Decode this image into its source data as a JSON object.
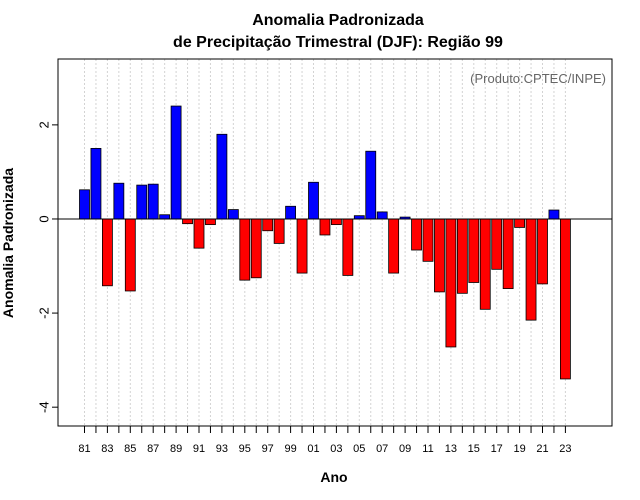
{
  "chart_data": {
    "type": "bar",
    "title_line1": "Anomalia Padronizada",
    "title_line2": "de Precipitação Trimestral (DJF): Região 99",
    "xlabel": "Ano",
    "ylabel": "Anomalia Padronizada",
    "annotation": "(Produto:CPTEC/INPE)",
    "ylim": [
      -4.4,
      3.4
    ],
    "yticks": [
      -4,
      -2,
      0,
      2
    ],
    "ytick_labels": [
      "-4",
      "-2",
      "0",
      "2"
    ],
    "categories": [
      "81",
      "82",
      "83",
      "84",
      "85",
      "86",
      "87",
      "88",
      "89",
      "90",
      "91",
      "92",
      "93",
      "94",
      "95",
      "96",
      "97",
      "98",
      "99",
      "00",
      "01",
      "02",
      "03",
      "04",
      "05",
      "06",
      "07",
      "08",
      "09",
      "10",
      "11",
      "12",
      "13",
      "14",
      "15",
      "16",
      "17",
      "18",
      "19",
      "20",
      "21",
      "22",
      "23"
    ],
    "x_tick_labels": [
      "81",
      "83",
      "85",
      "87",
      "89",
      "91",
      "93",
      "95",
      "97",
      "99",
      "01",
      "03",
      "05",
      "07",
      "09",
      "11",
      "13",
      "15",
      "17",
      "19",
      "21",
      "23"
    ],
    "values": [
      0.62,
      1.5,
      -1.42,
      0.76,
      -1.53,
      0.72,
      0.74,
      0.09,
      2.4,
      -0.1,
      -0.62,
      -0.12,
      1.8,
      0.2,
      -1.3,
      -1.25,
      -0.25,
      -0.52,
      0.27,
      -1.15,
      0.78,
      -0.34,
      -0.12,
      -1.2,
      0.07,
      1.44,
      0.15,
      -1.15,
      0.04,
      -0.66,
      -0.9,
      -1.55,
      -2.72,
      -1.58,
      -1.35,
      -1.92,
      -1.07,
      -1.48,
      -0.18,
      -2.15,
      -1.38,
      0.19,
      -3.4
    ],
    "colors": {
      "positive": "#0000ff",
      "negative": "#ff0000",
      "grid": "#d3d3d3",
      "axis": "#000000",
      "annotation": "#666666"
    }
  }
}
